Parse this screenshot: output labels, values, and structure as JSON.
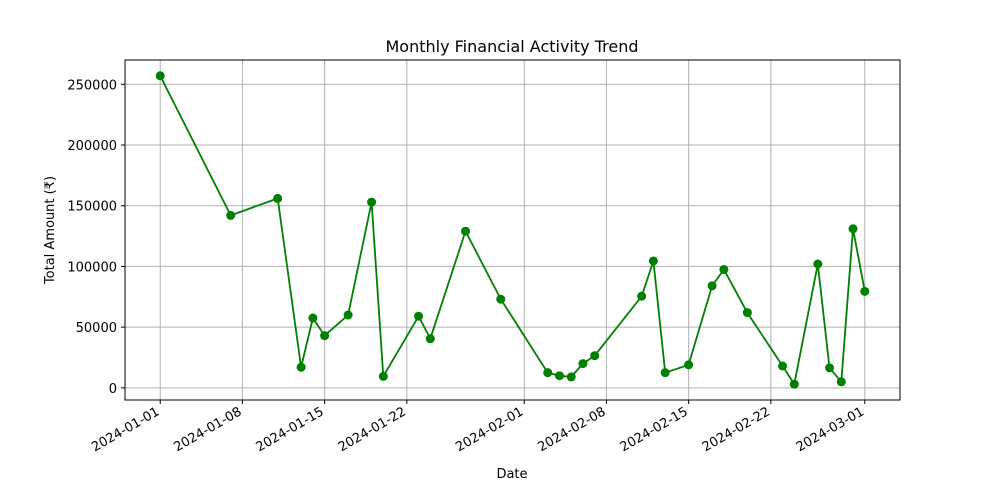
{
  "chart_data": {
    "type": "line",
    "title": "Monthly Financial Activity Trend",
    "xlabel": "Date",
    "ylabel": "Total Amount (₹)",
    "x_tick_labels": [
      "2024-01-01",
      "2024-01-08",
      "2024-01-15",
      "2024-01-22",
      "2024-02-01",
      "2024-02-08",
      "2024-02-15",
      "2024-02-22",
      "2024-03-01"
    ],
    "y_ticks": [
      0,
      50000,
      100000,
      150000,
      200000,
      250000
    ],
    "ylim": [
      -10000,
      270000
    ],
    "xlim": [
      "2023-12-29",
      "2024-03-04"
    ],
    "grid": true,
    "series_color": "#008000",
    "series": [
      {
        "x": [
          "2024-01-01",
          "2024-01-07",
          "2024-01-11",
          "2024-01-13",
          "2024-01-14",
          "2024-01-15",
          "2024-01-17",
          "2024-01-19",
          "2024-01-20",
          "2024-01-23",
          "2024-01-24",
          "2024-01-27",
          "2024-01-30",
          "2024-02-03",
          "2024-02-04",
          "2024-02-05",
          "2024-02-06",
          "2024-02-07",
          "2024-02-11",
          "2024-02-12",
          "2024-02-13",
          "2024-02-15",
          "2024-02-17",
          "2024-02-18",
          "2024-02-20",
          "2024-02-23",
          "2024-02-24",
          "2024-02-26",
          "2024-02-27",
          "2024-02-28",
          "2024-02-29",
          "2024-03-01"
        ],
        "values": [
          257000,
          142000,
          156000,
          17000,
          57500,
          43000,
          60000,
          153000,
          9500,
          59000,
          40500,
          129000,
          73000,
          12500,
          10000,
          9000,
          20000,
          26500,
          75500,
          104500,
          12500,
          19000,
          84000,
          97500,
          62000,
          18000,
          3000,
          102000,
          16500,
          5000,
          131000,
          79500
        ]
      }
    ]
  }
}
